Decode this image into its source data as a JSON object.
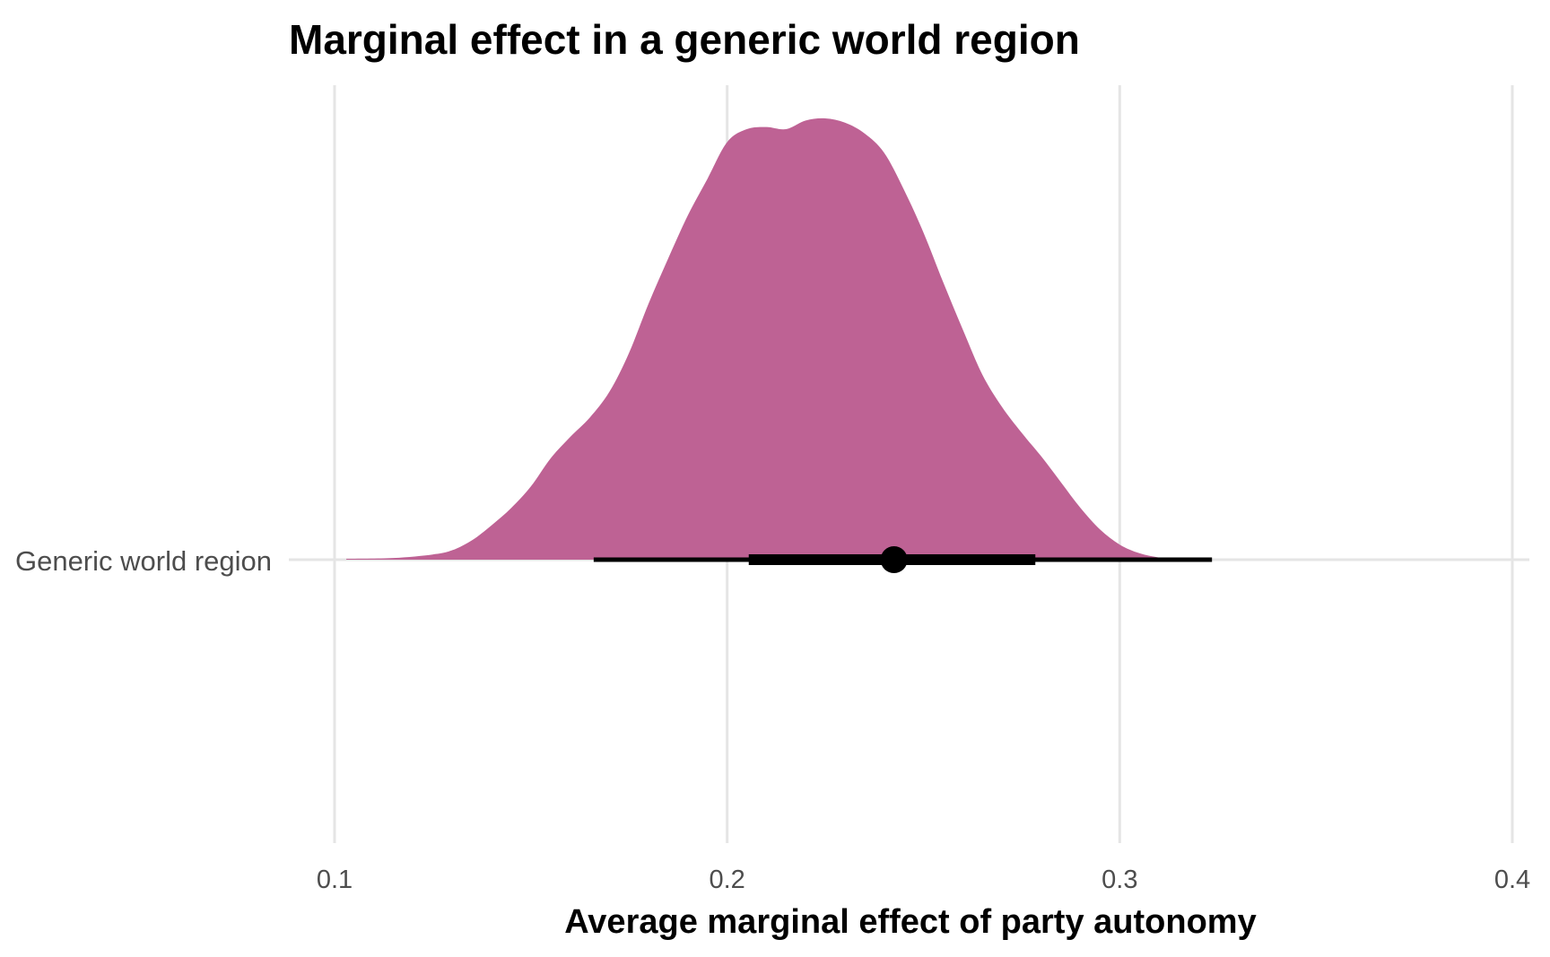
{
  "chart_data": {
    "type": "area",
    "subtype": "halfeye-density",
    "title": "Marginal effect in a generic world region",
    "xlabel": "Average marginal effect of party autonomy",
    "ylabel": "",
    "xlim": [
      0.1,
      0.4
    ],
    "x_ticks": [
      "0.1",
      "0.2",
      "0.3",
      "0.4"
    ],
    "x_tick_values": [
      0.1,
      0.2,
      0.3,
      0.4
    ],
    "categories": [
      "Generic world region"
    ],
    "grid": true,
    "legend": "none",
    "fill_color": "#be6294",
    "interval_color": "#000000",
    "density": {
      "x": [
        0.103,
        0.115,
        0.125,
        0.13,
        0.135,
        0.14,
        0.145,
        0.15,
        0.155,
        0.16,
        0.165,
        0.17,
        0.175,
        0.18,
        0.185,
        0.19,
        0.195,
        0.2,
        0.205,
        0.21,
        0.215,
        0.22,
        0.225,
        0.23,
        0.235,
        0.24,
        0.245,
        0.25,
        0.255,
        0.26,
        0.265,
        0.27,
        0.275,
        0.28,
        0.285,
        0.29,
        0.295,
        0.3,
        0.305,
        0.31,
        0.315,
        0.32,
        0.325,
        0.33,
        0.335,
        0.34,
        0.345,
        0.35,
        0.355,
        0.36,
        0.365,
        0.37,
        0.375,
        0.38,
        0.385,
        0.391
      ],
      "y": [
        0.002,
        0.004,
        0.012,
        0.022,
        0.045,
        0.08,
        0.12,
        0.17,
        0.235,
        0.285,
        0.33,
        0.39,
        0.48,
        0.595,
        0.7,
        0.8,
        0.885,
        0.97,
        1.0,
        1.005,
        1.0,
        1.02,
        1.025,
        1.015,
        0.99,
        0.945,
        0.86,
        0.76,
        0.645,
        0.535,
        0.43,
        0.355,
        0.295,
        0.24,
        0.18,
        0.12,
        0.07,
        0.035,
        0.015,
        0.005,
        0.0,
        0.0,
        0.0,
        0.0,
        0.0,
        0.0,
        0.0,
        0.0,
        0.0,
        0.0,
        0.0,
        0.0,
        0.0,
        0.0,
        0.0,
        0.0
      ]
    },
    "point_estimate": 0.2425,
    "interval_inner": [
      0.2055,
      0.2785
    ],
    "interval_outer": [
      0.166,
      0.3235
    ]
  }
}
